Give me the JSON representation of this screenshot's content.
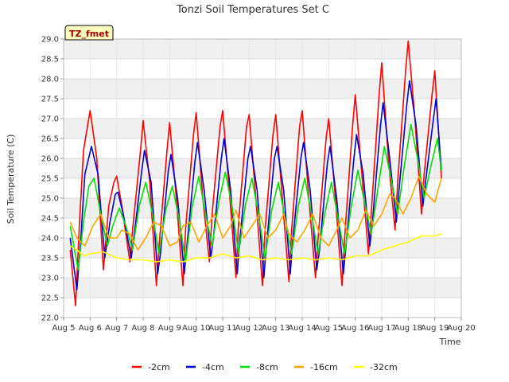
{
  "chart_data": {
    "type": "line",
    "title": "Tonzi Soil Temperatures Set C",
    "xlabel": "Time",
    "ylabel": "Soil Temperature (C)",
    "tag_label": "TZ_fmet",
    "xlim": [
      5,
      20
    ],
    "ylim": [
      22.0,
      29.0
    ],
    "x_ticks": [
      5,
      6,
      7,
      8,
      9,
      10,
      11,
      12,
      13,
      14,
      15,
      16,
      17,
      18,
      19,
      20
    ],
    "x_tick_labels": [
      "Aug 5",
      "Aug 6",
      "Aug 7",
      "Aug 8",
      "Aug 9",
      "Aug 10",
      "Aug 11",
      "Aug 12",
      "Aug 13",
      "Aug 14",
      "Aug 15",
      "Aug 16",
      "Aug 17",
      "Aug 18",
      "Aug 19",
      "Aug 20"
    ],
    "y_ticks": [
      22.0,
      22.5,
      23.0,
      23.5,
      24.0,
      24.5,
      25.0,
      25.5,
      26.0,
      26.5,
      27.0,
      27.5,
      28.0,
      28.5,
      29.0
    ],
    "y_tick_labels": [
      "22.0",
      "22.5",
      "23.0",
      "23.5",
      "24.0",
      "24.5",
      "25.0",
      "25.5",
      "26.0",
      "26.5",
      "27.0",
      "27.5",
      "28.0",
      "28.5",
      "29.0"
    ],
    "grid": true,
    "legend_position": "bottom",
    "series": [
      {
        "name": "-2cm",
        "color": "#ff0000",
        "x": [
          5.25,
          5.45,
          5.6,
          5.75,
          6.0,
          6.25,
          6.5,
          6.7,
          6.9,
          7.0,
          7.2,
          7.5,
          7.6,
          7.9,
          8.0,
          8.25,
          8.5,
          8.6,
          8.9,
          9.0,
          9.25,
          9.5,
          9.6,
          9.9,
          10.0,
          10.25,
          10.5,
          10.6,
          10.9,
          11.0,
          11.25,
          11.5,
          11.6,
          11.9,
          12.0,
          12.25,
          12.5,
          12.6,
          12.9,
          13.0,
          13.25,
          13.5,
          13.6,
          13.9,
          14.0,
          14.25,
          14.5,
          14.6,
          14.9,
          15.0,
          15.25,
          15.5,
          15.6,
          15.9,
          16.0,
          16.25,
          16.5,
          16.6,
          16.9,
          17.0,
          17.25,
          17.5,
          17.6,
          17.9,
          18.0,
          18.25,
          18.5,
          18.6,
          18.9,
          19.0,
          19.25
        ],
        "values": [
          23.7,
          22.3,
          24.4,
          26.2,
          27.2,
          26.0,
          23.2,
          24.8,
          25.4,
          25.55,
          24.8,
          23.4,
          24.2,
          26.2,
          26.95,
          25.4,
          22.8,
          23.8,
          26.2,
          26.9,
          25.0,
          22.8,
          24.2,
          26.6,
          27.15,
          25.0,
          23.4,
          24.6,
          26.8,
          27.2,
          25.2,
          23.0,
          24.4,
          26.8,
          27.1,
          25.0,
          22.8,
          24.2,
          26.6,
          27.1,
          25.0,
          22.9,
          24.2,
          26.8,
          27.2,
          25.0,
          23.0,
          24.0,
          26.5,
          27.0,
          25.0,
          22.8,
          24.0,
          26.8,
          27.6,
          25.6,
          23.6,
          24.6,
          27.6,
          28.4,
          26.0,
          24.2,
          25.4,
          28.2,
          28.95,
          27.0,
          24.6,
          25.6,
          27.6,
          28.2,
          25.5
        ]
      },
      {
        "name": "-4cm",
        "color": "#0000cc",
        "x": [
          5.25,
          5.5,
          5.65,
          5.8,
          6.05,
          6.3,
          6.55,
          6.75,
          6.95,
          7.05,
          7.25,
          7.55,
          7.65,
          7.95,
          8.05,
          8.3,
          8.55,
          8.65,
          8.95,
          9.05,
          9.3,
          9.55,
          9.65,
          9.95,
          10.05,
          10.3,
          10.55,
          10.65,
          10.95,
          11.05,
          11.3,
          11.55,
          11.65,
          11.95,
          12.05,
          12.3,
          12.55,
          12.65,
          12.95,
          13.05,
          13.3,
          13.55,
          13.65,
          13.95,
          14.05,
          14.3,
          14.55,
          14.65,
          14.95,
          15.05,
          15.3,
          15.55,
          15.65,
          15.95,
          16.05,
          16.3,
          16.55,
          16.65,
          16.95,
          17.05,
          17.3,
          17.55,
          17.65,
          17.95,
          18.05,
          18.3,
          18.55,
          18.65,
          18.95,
          19.05,
          19.25
        ],
        "values": [
          24.0,
          22.7,
          24.0,
          25.6,
          26.3,
          25.6,
          23.5,
          24.4,
          25.1,
          25.15,
          24.6,
          23.5,
          24.0,
          25.7,
          26.2,
          25.4,
          23.1,
          23.6,
          25.7,
          26.1,
          25.0,
          23.1,
          23.8,
          25.9,
          26.4,
          25.2,
          23.5,
          24.0,
          26.0,
          26.5,
          25.2,
          23.1,
          24.0,
          26.0,
          26.3,
          25.2,
          23.0,
          23.8,
          26.0,
          26.3,
          25.2,
          23.1,
          24.0,
          26.0,
          26.4,
          25.2,
          23.2,
          23.7,
          25.9,
          26.3,
          25.0,
          23.1,
          23.8,
          26.0,
          26.6,
          25.6,
          23.8,
          24.4,
          26.8,
          27.4,
          26.0,
          24.4,
          25.2,
          27.4,
          27.95,
          26.8,
          24.8,
          25.4,
          27.0,
          27.5,
          25.7
        ]
      },
      {
        "name": "-8cm",
        "color": "#00dd00",
        "x": [
          5.25,
          5.55,
          5.75,
          5.95,
          6.15,
          6.4,
          6.65,
          6.85,
          7.1,
          7.35,
          7.6,
          7.85,
          8.1,
          8.35,
          8.6,
          8.85,
          9.1,
          9.35,
          9.6,
          9.85,
          10.1,
          10.35,
          10.6,
          10.85,
          11.1,
          11.35,
          11.6,
          11.85,
          12.1,
          12.35,
          12.6,
          12.85,
          13.1,
          13.35,
          13.6,
          13.85,
          14.1,
          14.35,
          14.6,
          14.85,
          15.1,
          15.35,
          15.6,
          15.85,
          16.1,
          16.35,
          16.6,
          16.85,
          17.1,
          17.35,
          17.6,
          17.85,
          18.1,
          18.35,
          18.6,
          18.85,
          19.1,
          19.25
        ],
        "values": [
          24.3,
          23.2,
          24.4,
          25.3,
          25.5,
          24.6,
          23.8,
          24.3,
          24.75,
          24.3,
          23.7,
          24.8,
          25.4,
          24.6,
          23.6,
          24.7,
          25.3,
          24.5,
          23.4,
          24.8,
          25.55,
          24.6,
          23.8,
          24.9,
          25.65,
          24.8,
          23.6,
          24.8,
          25.5,
          24.6,
          23.5,
          24.7,
          25.4,
          24.5,
          23.6,
          24.8,
          25.5,
          24.6,
          23.6,
          24.6,
          25.4,
          24.5,
          23.6,
          24.8,
          25.7,
          24.9,
          24.1,
          25.2,
          26.3,
          25.5,
          24.6,
          25.8,
          26.85,
          26.0,
          25.0,
          25.8,
          26.5,
          25.7
        ]
      },
      {
        "name": "-16cm",
        "color": "#ffa500",
        "x": [
          5.25,
          5.5,
          5.8,
          6.1,
          6.4,
          6.7,
          7.0,
          7.2,
          7.5,
          7.8,
          8.1,
          8.4,
          8.7,
          9.0,
          9.3,
          9.5,
          9.8,
          10.1,
          10.4,
          10.7,
          11.0,
          11.3,
          11.5,
          11.8,
          12.1,
          12.4,
          12.7,
          13.0,
          13.3,
          13.5,
          13.8,
          14.1,
          14.4,
          14.7,
          15.0,
          15.3,
          15.5,
          15.8,
          16.1,
          16.4,
          16.7,
          17.0,
          17.3,
          17.5,
          17.8,
          18.1,
          18.4,
          18.7,
          19.0,
          19.25
        ],
        "values": [
          24.4,
          24.0,
          23.8,
          24.3,
          24.6,
          24.0,
          24.0,
          24.2,
          24.1,
          23.7,
          24.0,
          24.4,
          24.3,
          23.8,
          23.9,
          24.3,
          24.4,
          23.9,
          24.3,
          24.6,
          24.0,
          24.3,
          24.7,
          24.0,
          24.3,
          24.6,
          24.0,
          24.2,
          24.6,
          24.1,
          23.9,
          24.2,
          24.6,
          24.0,
          23.8,
          24.2,
          24.5,
          24.0,
          24.2,
          24.7,
          24.3,
          24.6,
          25.1,
          25.0,
          24.6,
          25.0,
          25.55,
          25.1,
          24.9,
          25.5
        ]
      },
      {
        "name": "-32cm",
        "color": "#ffff00",
        "x": [
          5.25,
          5.5,
          5.75,
          6.0,
          6.5,
          7.0,
          7.5,
          8.0,
          8.5,
          9.0,
          9.5,
          10.0,
          10.5,
          11.0,
          11.5,
          12.0,
          12.5,
          13.0,
          13.5,
          14.0,
          14.5,
          15.0,
          15.5,
          16.0,
          16.5,
          17.0,
          17.5,
          18.0,
          18.5,
          19.0,
          19.25
        ],
        "values": [
          23.8,
          23.7,
          23.55,
          23.6,
          23.65,
          23.5,
          23.45,
          23.45,
          23.4,
          23.45,
          23.4,
          23.5,
          23.5,
          23.6,
          23.5,
          23.55,
          23.45,
          23.5,
          23.45,
          23.5,
          23.45,
          23.5,
          23.45,
          23.55,
          23.55,
          23.7,
          23.8,
          23.9,
          24.05,
          24.05,
          24.1
        ]
      }
    ]
  }
}
